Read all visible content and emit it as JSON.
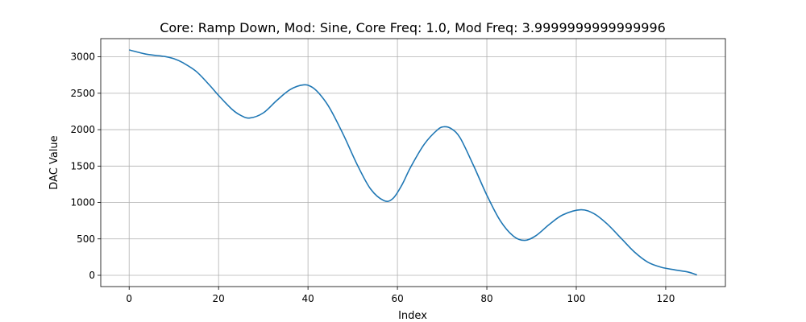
{
  "chart_data": {
    "type": "line",
    "title": "Core: Ramp Down, Mod: Sine, Core Freq: 1.0, Mod Freq: 3.9999999999999996",
    "xlabel": "Index",
    "ylabel": "DAC Value",
    "xlim": [
      -6.35,
      133.35
    ],
    "ylim": [
      -155,
      3250
    ],
    "xticks": [
      0,
      20,
      40,
      60,
      80,
      100,
      120
    ],
    "xtick_labels": [
      "0",
      "20",
      "40",
      "60",
      "80",
      "100",
      "120"
    ],
    "yticks": [
      0,
      500,
      1000,
      1500,
      2000,
      2500,
      3000
    ],
    "ytick_labels": [
      "0",
      "500",
      "1000",
      "1500",
      "2000",
      "2500",
      "3000"
    ],
    "grid": true,
    "legend": "none",
    "series": [
      {
        "color": "#1f77b4",
        "x": [
          0,
          4,
          8,
          10,
          12,
          15,
          18,
          20,
          23,
          25,
          27,
          30,
          33,
          36,
          39,
          41,
          43,
          45,
          48,
          51,
          54,
          57,
          59,
          61,
          63,
          66,
          69,
          70.5,
          72,
          74,
          77,
          80,
          83,
          86,
          88.5,
          91,
          94,
          97,
          101,
          104,
          107,
          110,
          113,
          116,
          119,
          122,
          125,
          127
        ],
        "y": [
          3095,
          3035,
          3005,
          2975,
          2920,
          2800,
          2610,
          2470,
          2280,
          2195,
          2160,
          2230,
          2400,
          2550,
          2615,
          2580,
          2460,
          2280,
          1920,
          1520,
          1185,
          1025,
          1055,
          1240,
          1490,
          1800,
          2000,
          2040,
          2015,
          1890,
          1510,
          1100,
          750,
          535,
          480,
          545,
          700,
          830,
          900,
          845,
          700,
          510,
          320,
          180,
          110,
          75,
          45,
          5
        ]
      }
    ]
  }
}
